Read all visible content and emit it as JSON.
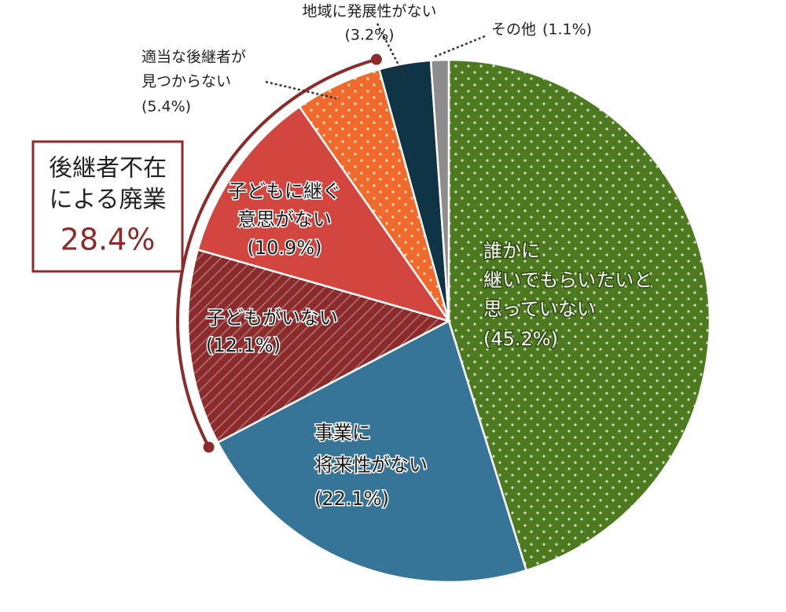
{
  "chart_data": {
    "type": "pie",
    "categories": [
      [
        "誰かに",
        "継いでもらいたいと",
        "思っていない"
      ],
      [
        "事業に",
        "将来性がない"
      ],
      [
        "子どもがいない"
      ],
      [
        "子どもに継ぐ",
        "意思がない"
      ],
      [
        "適当な後継者が",
        "見つからない"
      ],
      [
        "地域に発展性がない"
      ],
      [
        "その他"
      ]
    ],
    "values": [
      45.2,
      22.1,
      12.1,
      10.9,
      5.4,
      3.2,
      1.1
    ],
    "value_labels": [
      "(45.2%)",
      "(22.1%)",
      "(12.1%)",
      "(10.9%)",
      "(5.4%)",
      "(3.2%)",
      "(1.1%)"
    ],
    "colors": [
      "#4e7a1f",
      "#367597",
      "#8b2b2b",
      "#d2463f",
      "#f06a2c",
      "#0e3446",
      "#8c8c8c"
    ],
    "patterns": [
      "dots",
      "none",
      "hatch",
      "none",
      "dots",
      "none",
      "none"
    ],
    "annotation": {
      "text": [
        "後継者不在",
        "による廃業"
      ],
      "value": {
        "value": 28.4,
        "label": "28.4%"
      },
      "color": "#8b2b2b"
    }
  }
}
